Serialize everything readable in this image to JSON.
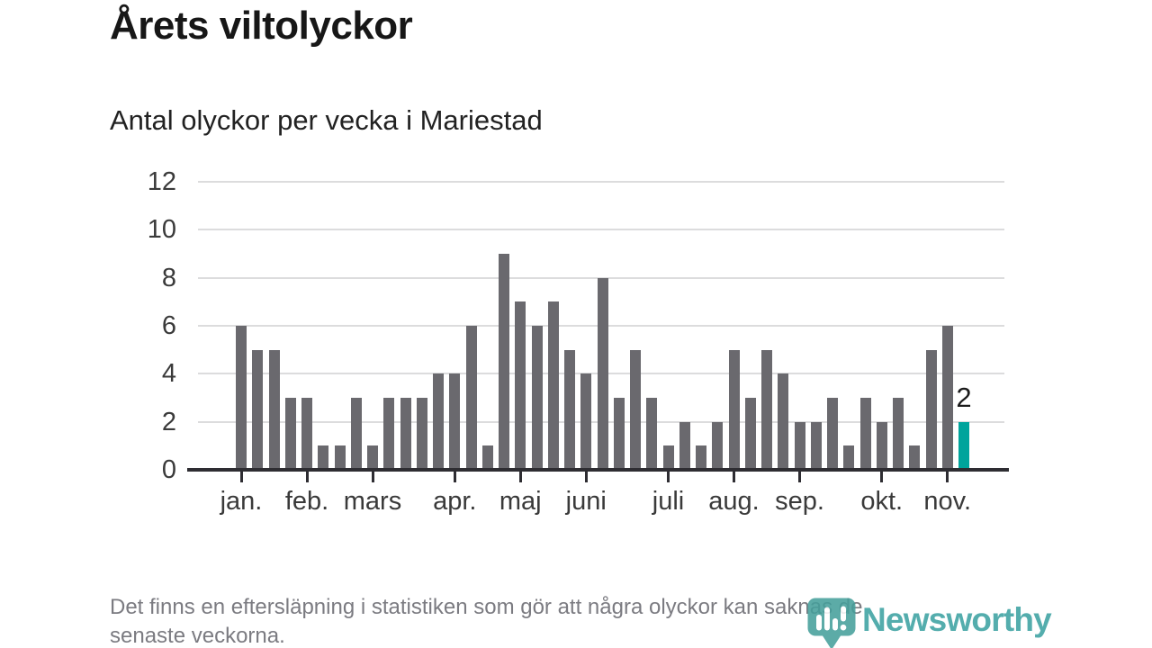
{
  "header": {
    "title": "Årets viltolyckor",
    "subtitle": "Antal olyckor per vecka i Mariestad"
  },
  "chart_data": {
    "type": "bar",
    "title": "Årets viltolyckor",
    "subtitle": "Antal olyckor per vecka i Mariestad",
    "xlabel": "",
    "ylabel": "",
    "ylim": [
      0,
      12
    ],
    "yticks": [
      0,
      2,
      4,
      6,
      8,
      10,
      12
    ],
    "grid": true,
    "categories_unit": "vecka",
    "weekly_values": [
      6,
      5,
      5,
      3,
      3,
      1,
      1,
      3,
      1,
      3,
      3,
      3,
      4,
      4,
      6,
      1,
      9,
      7,
      6,
      7,
      5,
      4,
      8,
      3,
      5,
      3,
      1,
      2,
      1,
      2,
      5,
      3,
      5,
      4,
      2,
      2,
      3,
      1,
      3,
      2,
      3,
      1,
      5,
      6,
      2
    ],
    "month_ticks": [
      {
        "label": "jan.",
        "week_index": 0
      },
      {
        "label": "feb.",
        "week_index": 4
      },
      {
        "label": "mars",
        "week_index": 8
      },
      {
        "label": "apr.",
        "week_index": 13
      },
      {
        "label": "maj",
        "week_index": 17
      },
      {
        "label": "juni",
        "week_index": 21
      },
      {
        "label": "juli",
        "week_index": 26
      },
      {
        "label": "aug.",
        "week_index": 30
      },
      {
        "label": "sep.",
        "week_index": 34
      },
      {
        "label": "okt.",
        "week_index": 39
      },
      {
        "label": "nov.",
        "week_index": 43
      }
    ],
    "highlight": {
      "week_index": 44,
      "value": 2,
      "label": "2"
    },
    "colors": {
      "bar": "#6a696e",
      "highlight": "#00a49c",
      "axis": "#2e2d32",
      "grid": "#dcdcdd",
      "tick_label": "#3a3a3a"
    },
    "legend": null
  },
  "footer": {
    "footnote_lines": [
      "Det finns en eftersläpning i statistiken som gör att några olyckor kan saknas de",
      "senaste veckorna."
    ],
    "logo_text": "Newsworthy",
    "logo_color": "#3ba1a1"
  }
}
